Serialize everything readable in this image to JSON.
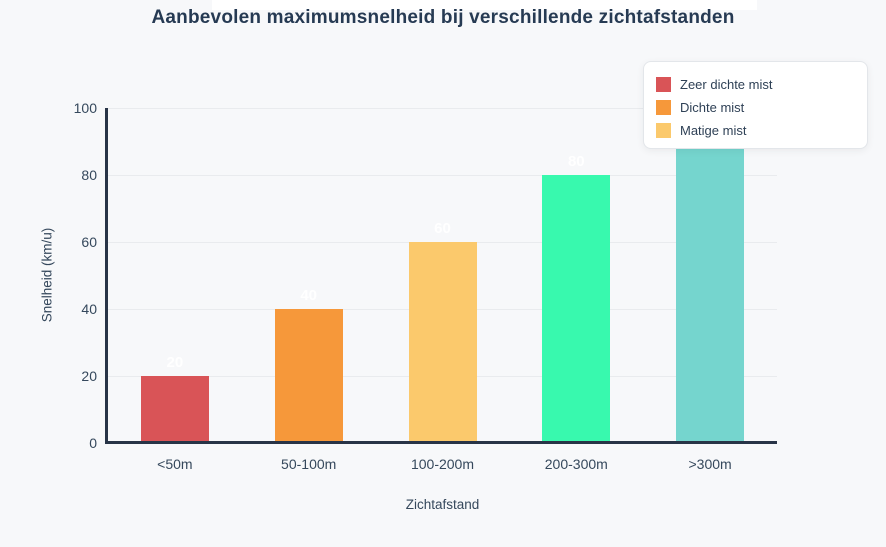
{
  "page": {
    "background_color": "#f7f8fa",
    "grid_color": "#e9ebee",
    "axis_line_color": "#283447",
    "title_color": "#263a53",
    "tick_label_color": "#35485c",
    "value_label_color": "#ffffff",
    "legend_text_color": "#2f4156"
  },
  "chart_data": {
    "type": "bar",
    "title": "Aanbevolen maximumsnelheid bij verschillende zichtafstanden",
    "xlabel": "Zichtafstand",
    "ylabel": "Snelheid (km/u)",
    "categories": [
      "<50m",
      "50-100m",
      "100-200m",
      "200-300m",
      ">300m"
    ],
    "values": [
      20,
      40,
      60,
      80,
      100
    ],
    "bar_colors": [
      "#d95457",
      "#f6983a",
      "#fbc96c",
      "#38f9ae",
      "#75d5ce"
    ],
    "value_labels": [
      "20",
      "40",
      "60",
      "80",
      "100"
    ],
    "ylim": [
      0,
      100
    ],
    "yticks": [
      0,
      20,
      40,
      60,
      80,
      100
    ],
    "grid": true,
    "legend_position": "top-right",
    "legend": [
      {
        "label": "Zeer dichte mist",
        "color": "#d95457"
      },
      {
        "label": "Dichte mist",
        "color": "#f6983a"
      },
      {
        "label": "Matige mist",
        "color": "#fbc96c"
      }
    ]
  }
}
